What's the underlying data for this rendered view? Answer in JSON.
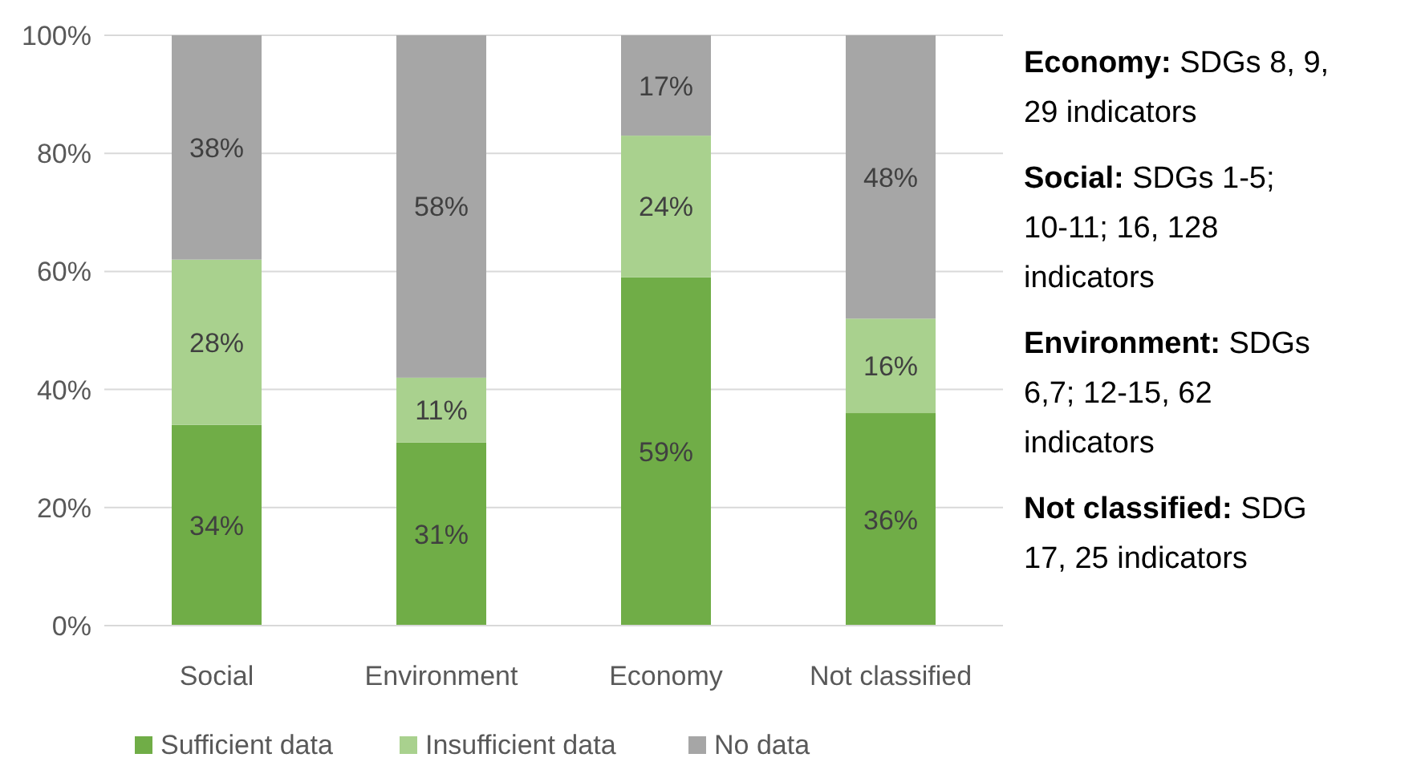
{
  "chart_data": {
    "type": "bar",
    "stacked": true,
    "categories": [
      "Social",
      "Environment",
      "Economy",
      "Not classified"
    ],
    "series": [
      {
        "name": "Sufficient data",
        "color": "#70ad47",
        "values": [
          34,
          31,
          59,
          36
        ],
        "value_labels": [
          "34%",
          "31%",
          "59%",
          "36%"
        ]
      },
      {
        "name": "Insufficient data",
        "color": "#a9d18e",
        "values": [
          28,
          11,
          24,
          16
        ],
        "value_labels": [
          "28%",
          "11%",
          "24%",
          "16%"
        ]
      },
      {
        "name": "No data",
        "color": "#a6a6a6",
        "values": [
          38,
          58,
          17,
          48
        ],
        "value_labels": [
          "38%",
          "58%",
          "17%",
          "48%"
        ]
      }
    ],
    "ylim": [
      0,
      100
    ],
    "yticks": [
      {
        "value": 0,
        "label": "0%"
      },
      {
        "value": 20,
        "label": "20%"
      },
      {
        "value": 40,
        "label": "40%"
      },
      {
        "value": 60,
        "label": "60%"
      },
      {
        "value": 80,
        "label": "80%"
      },
      {
        "value": 100,
        "label": "100%"
      }
    ],
    "grid": "y",
    "legend": "bottom",
    "annotations": [
      "Economy: SDGs 8, 9, 29 indicators",
      "Social: SDGs 1-5; 10-11; 16, 128 indicators",
      "Environment: SDGs 6,7; 12-15, 62 indicators",
      "Not classified: SDG 17, 25 indicators"
    ]
  }
}
